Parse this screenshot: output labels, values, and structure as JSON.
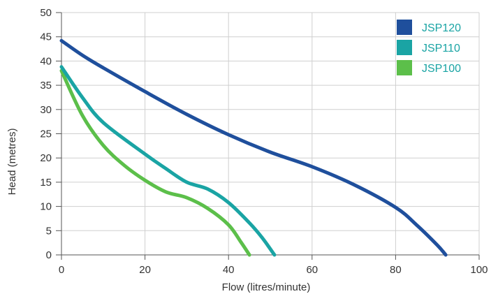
{
  "chart_data": {
    "type": "line",
    "title": "",
    "xlabel": "Flow (litres/minute)",
    "ylabel": "Head (metres)",
    "xlim": [
      0,
      100
    ],
    "ylim": [
      0,
      50
    ],
    "xticks": [
      "0",
      "20",
      "40",
      "60",
      "80",
      "100"
    ],
    "yticks": [
      "0",
      "5",
      "10",
      "15",
      "20",
      "25",
      "30",
      "35",
      "40",
      "45",
      "50"
    ],
    "grid": true,
    "legend_position": "top-right",
    "series": [
      {
        "name": "JSP120",
        "color": "#1f4f9c",
        "points": [
          [
            0,
            44.2
          ],
          [
            5,
            41.2
          ],
          [
            10,
            38.6
          ],
          [
            20,
            33.7
          ],
          [
            30,
            29.0
          ],
          [
            40,
            24.8
          ],
          [
            50,
            21.2
          ],
          [
            60,
            18.2
          ],
          [
            70,
            14.5
          ],
          [
            80,
            9.8
          ],
          [
            85,
            6.2
          ],
          [
            90,
            2.0
          ],
          [
            92,
            0
          ]
        ]
      },
      {
        "name": "JSP110",
        "color": "#1aa4a4",
        "points": [
          [
            0,
            38.8
          ],
          [
            5,
            32.5
          ],
          [
            10,
            27.3
          ],
          [
            20,
            20.8
          ],
          [
            25,
            17.8
          ],
          [
            30,
            15.0
          ],
          [
            35,
            13.6
          ],
          [
            40,
            10.8
          ],
          [
            45,
            6.6
          ],
          [
            48,
            3.6
          ],
          [
            51,
            0
          ]
        ]
      },
      {
        "name": "JSP100",
        "color": "#5cbf4a",
        "points": [
          [
            0,
            38.0
          ],
          [
            5,
            28.8
          ],
          [
            10,
            22.6
          ],
          [
            15,
            18.5
          ],
          [
            20,
            15.4
          ],
          [
            25,
            13.0
          ],
          [
            30,
            11.8
          ],
          [
            35,
            9.6
          ],
          [
            40,
            6.2
          ],
          [
            43,
            2.6
          ],
          [
            45,
            0
          ]
        ]
      }
    ]
  }
}
